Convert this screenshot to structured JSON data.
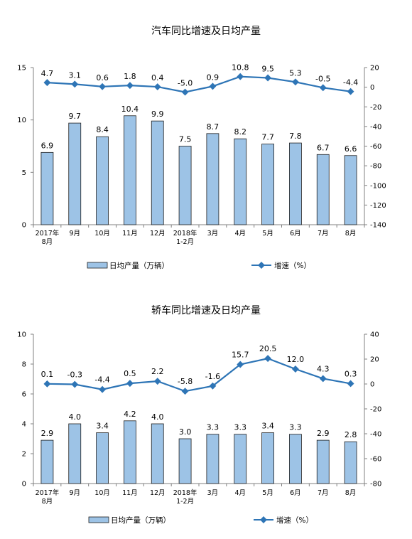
{
  "colors": {
    "bar_fill": "#9DC3E6",
    "bar_stroke": "#1F1F1F",
    "line": "#2E75B6",
    "axis": "#808080",
    "text": "#000000"
  },
  "chart_data": [
    {
      "type": "bar+line",
      "title": "汽车同比增速及日均产量",
      "categories": [
        [
          "2017年",
          "8月"
        ],
        [
          "9月"
        ],
        [
          "10月"
        ],
        [
          "11月"
        ],
        [
          "12月"
        ],
        [
          "2018年",
          "1-2月"
        ],
        [
          "3月"
        ],
        [
          "4月"
        ],
        [
          "5月"
        ],
        [
          "6月"
        ],
        [
          "7月"
        ],
        [
          "8月"
        ]
      ],
      "series": [
        {
          "name": "日均产量（万辆）",
          "type": "bar",
          "axis": "left",
          "values": [
            6.9,
            9.7,
            8.4,
            10.4,
            9.9,
            7.5,
            8.7,
            8.2,
            7.7,
            7.8,
            6.7,
            6.6
          ],
          "labels": [
            "6.9",
            "9.7",
            "8.4",
            "10.4",
            "9.9",
            "7.5",
            "8.7",
            "8.2",
            "7.7",
            "7.8",
            "6.7",
            "6.6"
          ]
        },
        {
          "name": "增速（%）",
          "type": "line",
          "axis": "right",
          "values": [
            4.7,
            3.1,
            0.6,
            1.8,
            0.4,
            -5.0,
            0.9,
            10.8,
            9.5,
            5.3,
            -0.5,
            -4.4
          ],
          "labels": [
            "4.7",
            "3.1",
            "0.6",
            "1.8",
            "0.4",
            "-5.0",
            "0.9",
            "10.8",
            "9.5",
            "5.3",
            "-0.5",
            "-4.4"
          ]
        }
      ],
      "ylim_left": [
        0,
        15
      ],
      "yticks_left": [
        "0",
        "5",
        "10",
        "15"
      ],
      "ylim_right": [
        -140,
        20
      ],
      "yticks_right": [
        "-140",
        "-120",
        "-100",
        "-80",
        "-60",
        "-40",
        "-20",
        "0",
        "20"
      ],
      "legend_position": "bottom"
    },
    {
      "type": "bar+line",
      "title": "轿车同比增速及日均产量",
      "categories": [
        [
          "2017年",
          "8月"
        ],
        [
          "9月"
        ],
        [
          "10月"
        ],
        [
          "11月"
        ],
        [
          "12月"
        ],
        [
          "2018年",
          "1-2月"
        ],
        [
          "3月"
        ],
        [
          "4月"
        ],
        [
          "5月"
        ],
        [
          "6月"
        ],
        [
          "7月"
        ],
        [
          "8月"
        ]
      ],
      "series": [
        {
          "name": "日均产量（万辆）",
          "type": "bar",
          "axis": "left",
          "values": [
            2.9,
            4.0,
            3.4,
            4.2,
            4.0,
            3.0,
            3.3,
            3.3,
            3.4,
            3.3,
            2.9,
            2.8
          ],
          "labels": [
            "2.9",
            "4.0",
            "3.4",
            "4.2",
            "4.0",
            "3.0",
            "3.3",
            "3.3",
            "3.4",
            "3.3",
            "2.9",
            "2.8"
          ]
        },
        {
          "name": "增速（%）",
          "type": "line",
          "axis": "right",
          "values": [
            0.1,
            -0.3,
            -4.4,
            0.5,
            2.2,
            -5.8,
            -1.6,
            15.7,
            20.5,
            12.0,
            4.3,
            0.3
          ],
          "labels": [
            "0.1",
            "-0.3",
            "-4.4",
            "0.5",
            "2.2",
            "-5.8",
            "-1.6",
            "15.7",
            "20.5",
            "12.0",
            "4.3",
            "0.3"
          ]
        }
      ],
      "ylim_left": [
        0,
        10
      ],
      "yticks_left": [
        "0",
        "2",
        "4",
        "6",
        "8",
        "10"
      ],
      "ylim_right": [
        -80,
        40
      ],
      "yticks_right": [
        "-80",
        "-60",
        "-40",
        "-20",
        "0",
        "20",
        "40"
      ],
      "legend_position": "bottom"
    }
  ]
}
